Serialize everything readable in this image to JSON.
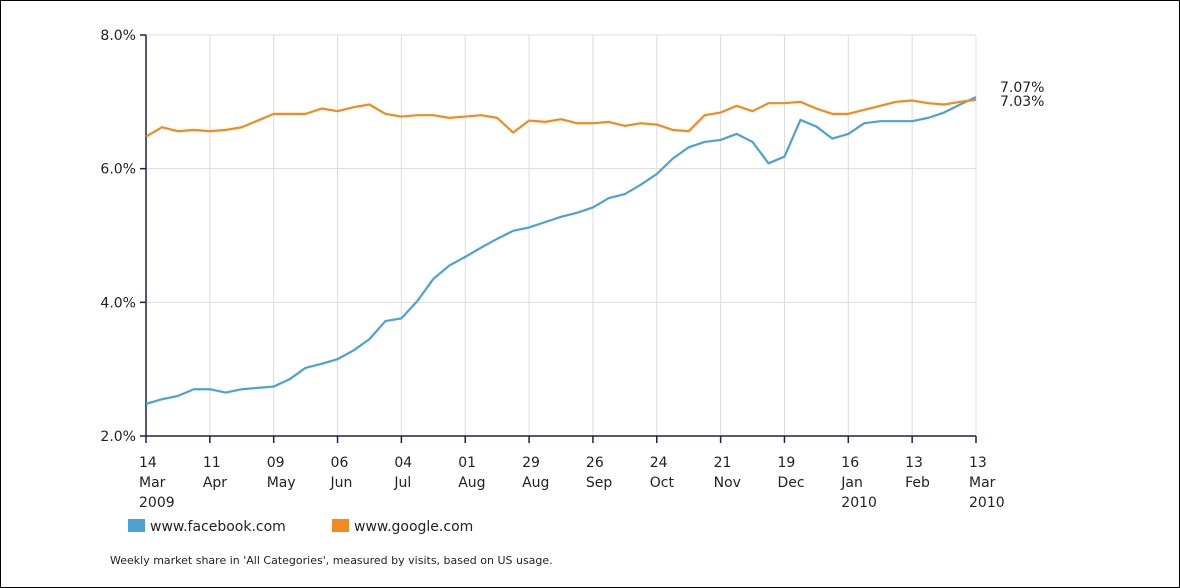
{
  "chart_data": {
    "type": "line",
    "x": [
      "2009-03-14",
      "2009-03-21",
      "2009-03-28",
      "2009-04-04",
      "2009-04-11",
      "2009-04-18",
      "2009-04-25",
      "2009-05-02",
      "2009-05-09",
      "2009-05-16",
      "2009-05-23",
      "2009-05-30",
      "2009-06-06",
      "2009-06-13",
      "2009-06-20",
      "2009-06-27",
      "2009-07-04",
      "2009-07-11",
      "2009-07-18",
      "2009-07-25",
      "2009-08-01",
      "2009-08-08",
      "2009-08-15",
      "2009-08-22",
      "2009-08-29",
      "2009-09-05",
      "2009-09-12",
      "2009-09-19",
      "2009-09-26",
      "2009-10-03",
      "2009-10-10",
      "2009-10-17",
      "2009-10-24",
      "2009-10-31",
      "2009-11-07",
      "2009-11-14",
      "2009-11-21",
      "2009-11-28",
      "2009-12-05",
      "2009-12-12",
      "2009-12-19",
      "2009-12-26",
      "2010-01-02",
      "2010-01-09",
      "2010-01-16",
      "2010-01-23",
      "2010-01-30",
      "2010-02-06",
      "2010-02-13",
      "2010-02-20",
      "2010-02-27",
      "2010-03-06",
      "2010-03-13"
    ],
    "series": [
      {
        "name": "www.facebook.com",
        "color": "#4ba3d3",
        "values": [
          2.48,
          2.55,
          2.6,
          2.7,
          2.7,
          2.65,
          2.7,
          2.72,
          2.74,
          2.85,
          3.02,
          3.08,
          3.15,
          3.28,
          3.45,
          3.72,
          3.76,
          4.02,
          4.35,
          4.55,
          4.68,
          4.82,
          4.95,
          5.07,
          5.12,
          5.2,
          5.28,
          5.34,
          5.42,
          5.56,
          5.62,
          5.76,
          5.92,
          6.15,
          6.32,
          6.4,
          6.43,
          6.52,
          6.4,
          6.08,
          6.18,
          6.73,
          6.63,
          6.45,
          6.52,
          6.68,
          6.71,
          6.71,
          6.71,
          6.76,
          6.84,
          6.96,
          7.07
        ],
        "value_labels": [
          null,
          null,
          null,
          null,
          null,
          null,
          null,
          null,
          null,
          null,
          null,
          null,
          null,
          null,
          null,
          null,
          null,
          null,
          null,
          null,
          null,
          null,
          null,
          null,
          null,
          null,
          null,
          null,
          null,
          null,
          null,
          null,
          null,
          null,
          null,
          null,
          null,
          null,
          null,
          null,
          null,
          null,
          null,
          null,
          null,
          null,
          null,
          null,
          null,
          null,
          null,
          null,
          "7.07%"
        ]
      },
      {
        "name": "www.google.com",
        "color": "#f28a1e",
        "values": [
          6.48,
          6.62,
          6.56,
          6.58,
          6.56,
          6.58,
          6.62,
          6.72,
          6.82,
          6.82,
          6.82,
          6.9,
          6.86,
          6.92,
          6.96,
          6.82,
          6.78,
          6.8,
          6.8,
          6.76,
          6.78,
          6.8,
          6.76,
          6.54,
          6.72,
          6.7,
          6.74,
          6.68,
          6.68,
          6.7,
          6.64,
          6.68,
          6.66,
          6.58,
          6.56,
          6.8,
          6.84,
          6.94,
          6.86,
          6.98,
          6.98,
          7.0,
          6.9,
          6.82,
          6.82,
          6.88,
          6.94,
          7.0,
          7.02,
          6.98,
          6.96,
          7.0,
          7.03
        ],
        "value_labels": [
          null,
          null,
          null,
          null,
          null,
          null,
          null,
          null,
          null,
          null,
          null,
          null,
          null,
          null,
          null,
          null,
          null,
          null,
          null,
          null,
          null,
          null,
          null,
          null,
          null,
          null,
          null,
          null,
          null,
          null,
          null,
          null,
          null,
          null,
          null,
          null,
          null,
          null,
          null,
          null,
          null,
          null,
          null,
          null,
          null,
          null,
          null,
          null,
          null,
          null,
          null,
          null,
          "7.03%"
        ]
      }
    ],
    "xlim": [
      "2009-03-14",
      "2010-03-13"
    ],
    "xticks": [
      {
        "value": "2009-03-14",
        "label": [
          "14",
          "Mar",
          "2009"
        ]
      },
      {
        "value": "2009-04-11",
        "label": [
          "11",
          "Apr"
        ]
      },
      {
        "value": "2009-05-09",
        "label": [
          "09",
          "May"
        ]
      },
      {
        "value": "2009-06-06",
        "label": [
          "06",
          "Jun"
        ]
      },
      {
        "value": "2009-07-04",
        "label": [
          "04",
          "Jul"
        ]
      },
      {
        "value": "2009-08-01",
        "label": [
          "01",
          "Aug"
        ]
      },
      {
        "value": "2009-08-29",
        "label": [
          "29",
          "Aug"
        ]
      },
      {
        "value": "2009-09-26",
        "label": [
          "26",
          "Sep"
        ]
      },
      {
        "value": "2009-10-24",
        "label": [
          "24",
          "Oct"
        ]
      },
      {
        "value": "2009-11-21",
        "label": [
          "21",
          "Nov"
        ]
      },
      {
        "value": "2009-12-19",
        "label": [
          "19",
          "Dec"
        ]
      },
      {
        "value": "2010-01-16",
        "label": [
          "16",
          "Jan",
          "2010"
        ]
      },
      {
        "value": "2010-02-13",
        "label": [
          "13",
          "Feb"
        ]
      },
      {
        "value": "2010-03-13",
        "label": [
          "13",
          "Mar",
          "2010"
        ]
      }
    ],
    "ylim": [
      2,
      8
    ],
    "yticks": [
      {
        "value": 2,
        "label": "2.0%"
      },
      {
        "value": 4,
        "label": "4.0%"
      },
      {
        "value": 6,
        "label": "6.0%"
      },
      {
        "value": 8,
        "label": "8.0%"
      }
    ],
    "grid": true,
    "legend": "bottom",
    "note": "Weekly market share in 'All Categories', measured by visits, based on US usage."
  }
}
